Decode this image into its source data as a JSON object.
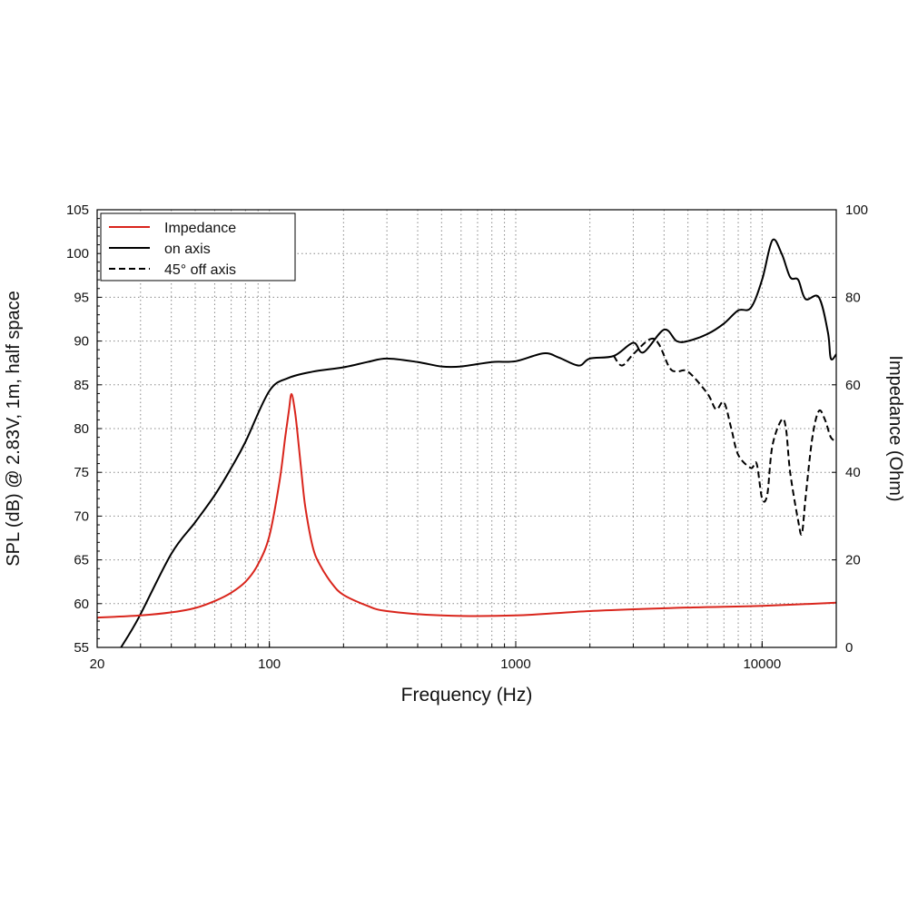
{
  "chart_data": {
    "type": "line",
    "title": "",
    "xlabel": "Frequency (Hz)",
    "ylabel": "SPL (dB) @ 2.83V, 1m, half space",
    "y2label": "Impedance (Ohm)",
    "xscale": "log",
    "xlim": [
      20,
      20000
    ],
    "ylim": [
      55,
      105
    ],
    "y2lim": [
      0,
      100
    ],
    "xticks": [
      20,
      100,
      1000,
      10000
    ],
    "xtick_labels": [
      "20",
      "100",
      "1000",
      "10000"
    ],
    "yticks": [
      55,
      60,
      65,
      70,
      75,
      80,
      85,
      90,
      95,
      100,
      105
    ],
    "ytick_labels": [
      "55",
      "60",
      "65",
      "70",
      "75",
      "80",
      "85",
      "90",
      "95",
      "100",
      "105"
    ],
    "y2ticks": [
      0,
      20,
      40,
      60,
      80,
      100
    ],
    "y2tick_labels": [
      "0",
      "20",
      "40",
      "60",
      "80",
      "100"
    ],
    "grid": true,
    "legend_position": "top-left",
    "series": [
      {
        "name": "Impedance",
        "axis": "right",
        "color": "#d9251c",
        "style": "solid",
        "x": [
          20,
          30,
          40,
          50,
          60,
          70,
          80,
          90,
          100,
          110,
          116,
          120,
          123,
          127,
          130,
          135,
          140,
          150,
          160,
          180,
          200,
          250,
          300,
          500,
          1000,
          2000,
          5000,
          10000,
          20000
        ],
        "y": [
          6.8,
          7.3,
          8.0,
          9.0,
          10.6,
          12.5,
          15.0,
          19.0,
          25.5,
          38.0,
          48.0,
          54.0,
          57.9,
          54.0,
          49.0,
          40.0,
          32.0,
          23.0,
          19.0,
          14.5,
          12.0,
          9.5,
          8.3,
          7.3,
          7.3,
          8.3,
          9.1,
          9.5,
          10.2
        ]
      },
      {
        "name": "on axis",
        "axis": "left",
        "color": "#000000",
        "style": "solid",
        "x": [
          25,
          29.5,
          40,
          50,
          60,
          70,
          80,
          100,
          120,
          150,
          200,
          250,
          300,
          400,
          500,
          600,
          800,
          1000,
          1300,
          1500,
          1800,
          2000,
          2500,
          3000,
          3300,
          4000,
          4500,
          5000,
          6000,
          7000,
          8000,
          9000,
          10000,
          11000,
          12000,
          13000,
          14000,
          15000,
          17000,
          18500,
          19000,
          20000
        ],
        "y": [
          55,
          58.4,
          65.7,
          69.3,
          72.4,
          75.5,
          78.5,
          84.3,
          85.8,
          86.5,
          87.0,
          87.6,
          88.0,
          87.6,
          87.1,
          87.1,
          87.6,
          87.7,
          88.6,
          88.1,
          87.2,
          88.0,
          88.3,
          89.8,
          88.7,
          91.3,
          90.0,
          90.0,
          90.8,
          92.0,
          93.5,
          93.8,
          97.0,
          101.5,
          100.0,
          97.3,
          97.0,
          94.8,
          95.0,
          91.0,
          88.0,
          88.5
        ]
      },
      {
        "name": "45° off axis",
        "axis": "left",
        "color": "#000000",
        "style": "dashed",
        "x": [
          2500,
          2700,
          3000,
          3500,
          3800,
          4200,
          4500,
          5000,
          6000,
          6500,
          7000,
          7500,
          8000,
          9000,
          9500,
          10000,
          10500,
          11000,
          12000,
          12500,
          13000,
          14000,
          14500,
          15000,
          16000,
          17000,
          18000,
          19000,
          20000
        ],
        "y": [
          88.3,
          87.2,
          88.5,
          90.2,
          89.7,
          87.0,
          86.5,
          86.5,
          84.0,
          82.2,
          83.0,
          80.0,
          77.0,
          75.5,
          76.0,
          72.0,
          72.5,
          78.0,
          81.0,
          80.0,
          75.0,
          69.5,
          68.0,
          72.0,
          79.0,
          82.0,
          81.0,
          79.0,
          78.6
        ]
      }
    ]
  }
}
